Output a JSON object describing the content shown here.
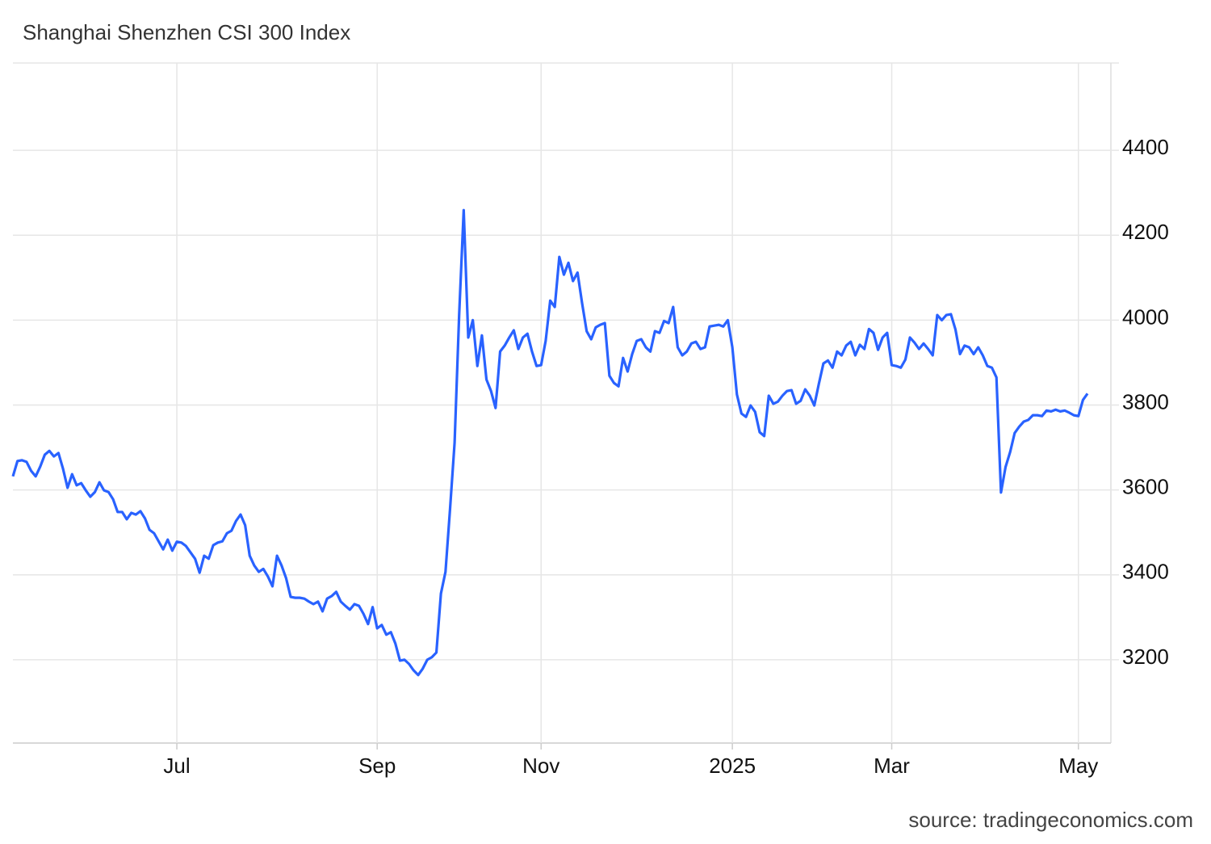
{
  "chart_data": {
    "type": "line",
    "title": "Shanghai Shenzhen CSI 300 Index",
    "source": "source: tradingeconomics.com",
    "color": "#2962ff",
    "grid": true,
    "ylim": [
      3000,
      4600
    ],
    "yticks": [
      3200,
      3400,
      3600,
      3800,
      4000,
      4200,
      4400
    ],
    "categories": [
      null,
      null,
      null,
      null,
      null,
      null,
      null,
      null,
      null,
      null,
      null,
      null,
      null,
      null,
      null,
      null,
      null,
      null,
      null,
      null,
      null,
      null,
      null,
      null,
      null,
      null,
      null,
      null,
      null,
      null,
      null,
      null,
      null,
      null,
      null,
      null,
      "Jul",
      null,
      null,
      null,
      null,
      null,
      null,
      null,
      null,
      null,
      null,
      null,
      null,
      null,
      null,
      null,
      null,
      null,
      null,
      null,
      null,
      null,
      null,
      null,
      null,
      null,
      null,
      null,
      null,
      null,
      null,
      null,
      null,
      null,
      null,
      null,
      null,
      null,
      null,
      null,
      null,
      null,
      null,
      null,
      "Sep",
      null,
      null,
      null,
      null,
      null,
      null,
      null,
      null,
      null,
      null,
      null,
      null,
      null,
      null,
      null,
      null,
      null,
      null,
      null,
      null,
      null,
      null,
      null,
      null,
      null,
      null,
      null,
      null,
      null,
      null,
      null,
      null,
      null,
      null,
      null,
      "Nov",
      null,
      null,
      null,
      null,
      null,
      null,
      null,
      null,
      null,
      null,
      null,
      null,
      null,
      null,
      null,
      null,
      null,
      null,
      null,
      null,
      null,
      null,
      null,
      null,
      null,
      null,
      null,
      null,
      null,
      null,
      null,
      null,
      null,
      null,
      null,
      null,
      null,
      null,
      null,
      null,
      null,
      "2025",
      null,
      null,
      null,
      null,
      null,
      null,
      null,
      null,
      null,
      null,
      null,
      null,
      null,
      null,
      null,
      null,
      null,
      null,
      null,
      null,
      null,
      null,
      null,
      null,
      null,
      null,
      null,
      null,
      null,
      null,
      null,
      null,
      null,
      null,
      "Mar",
      null,
      null,
      null,
      null,
      null,
      null,
      null,
      null,
      null,
      null,
      null,
      null,
      null,
      null,
      null,
      null,
      null,
      null,
      null,
      null,
      null,
      null,
      null,
      null,
      null,
      null,
      null,
      null,
      null,
      null,
      null,
      null,
      null,
      null,
      null,
      null,
      null,
      null,
      null,
      null,
      "May",
      null,
      null
    ],
    "values": [
      3632,
      3668,
      3670,
      3666,
      3645,
      3632,
      3655,
      3683,
      3692,
      3679,
      3687,
      3650,
      3605,
      3637,
      3611,
      3616,
      3599,
      3584,
      3595,
      3618,
      3599,
      3595,
      3578,
      3548,
      3548,
      3531,
      3546,
      3542,
      3550,
      3533,
      3506,
      3498,
      3479,
      3460,
      3483,
      3457,
      3478,
      3476,
      3468,
      3453,
      3438,
      3405,
      3445,
      3438,
      3470,
      3476,
      3479,
      3498,
      3504,
      3527,
      3542,
      3517,
      3445,
      3422,
      3407,
      3414,
      3396,
      3373,
      3445,
      3422,
      3392,
      3348,
      3346,
      3346,
      3344,
      3337,
      3331,
      3337,
      3314,
      3344,
      3350,
      3360,
      3337,
      3327,
      3318,
      3331,
      3327,
      3308,
      3284,
      3324,
      3274,
      3282,
      3259,
      3265,
      3238,
      3198,
      3200,
      3190,
      3175,
      3164,
      3179,
      3200,
      3206,
      3217,
      3356,
      3407,
      3555,
      3711,
      4012,
      4259,
      3959,
      4000,
      3892,
      3964,
      3860,
      3833,
      3793,
      3926,
      3940,
      3959,
      3976,
      3932,
      3959,
      3968,
      3926,
      3892,
      3894,
      3951,
      4046,
      4031,
      4149,
      4107,
      4135,
      4092,
      4112,
      4040,
      3974,
      3955,
      3983,
      3989,
      3993,
      3869,
      3852,
      3844,
      3911,
      3879,
      3920,
      3951,
      3955,
      3936,
      3926,
      3974,
      3970,
      3998,
      3993,
      4031,
      3936,
      3917,
      3926,
      3945,
      3949,
      3932,
      3936,
      3985,
      3987,
      3989,
      3985,
      4000,
      3936,
      3825,
      3780,
      3772,
      3799,
      3784,
      3736,
      3727,
      3822,
      3803,
      3808,
      3822,
      3833,
      3835,
      3803,
      3810,
      3837,
      3822,
      3799,
      3850,
      3898,
      3905,
      3888,
      3926,
      3917,
      3940,
      3949,
      3917,
      3942,
      3932,
      3979,
      3970,
      3930,
      3959,
      3970,
      3894,
      3892,
      3888,
      3907,
      3959,
      3947,
      3932,
      3945,
      3932,
      3917,
      4012,
      4000,
      4012,
      4014,
      3978,
      3920,
      3940,
      3936,
      3920,
      3936,
      3917,
      3892,
      3888,
      3865,
      3594,
      3654,
      3689,
      3734,
      3749,
      3761,
      3765,
      3776,
      3776,
      3774,
      3787,
      3785,
      3789,
      3785,
      3787,
      3782,
      3776,
      3774,
      3812,
      3827
    ]
  }
}
